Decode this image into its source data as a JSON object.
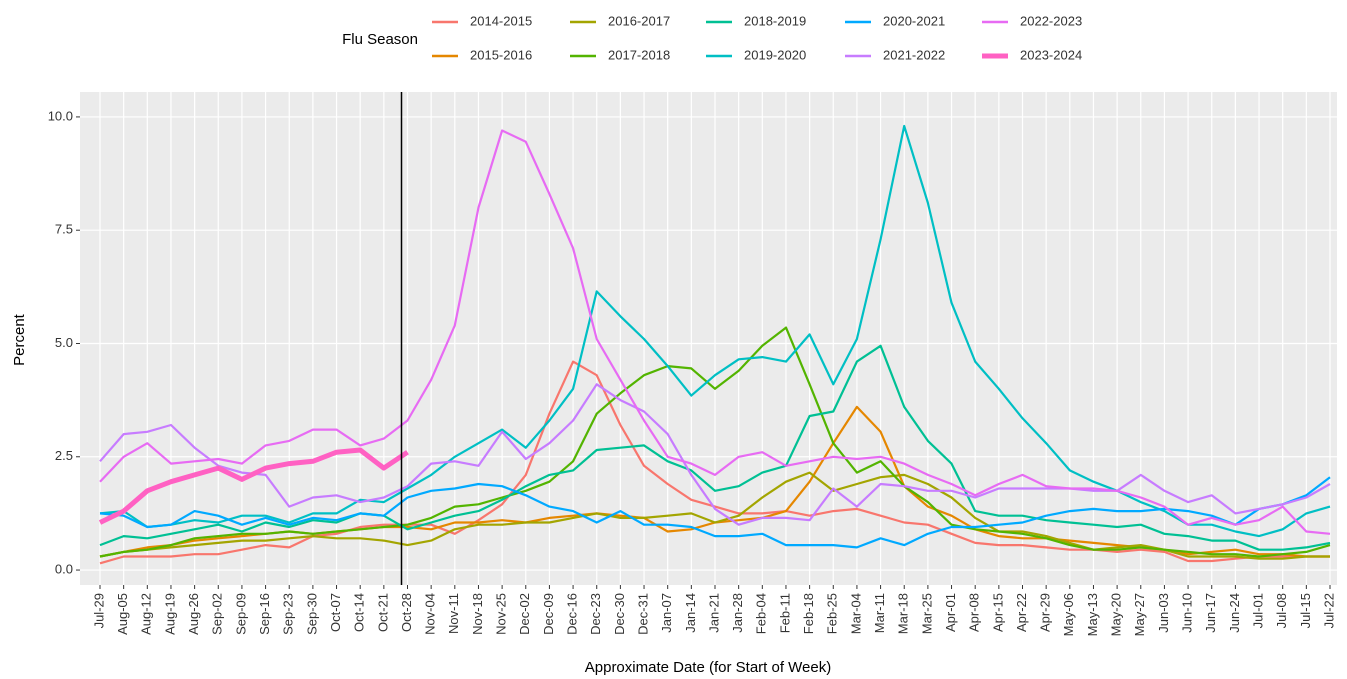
{
  "chart_data": {
    "type": "line",
    "xlabel": "Approximate Date (for Start of Week)",
    "ylabel": "Percent",
    "legend_title": "Flu Season",
    "legend_position": "top",
    "grid": true,
    "vline": "Oct-28",
    "categories": [
      "Jul-29",
      "Aug-05",
      "Aug-12",
      "Aug-19",
      "Aug-26",
      "Sep-02",
      "Sep-09",
      "Sep-16",
      "Sep-23",
      "Sep-30",
      "Oct-07",
      "Oct-14",
      "Oct-21",
      "Oct-28",
      "Nov-04",
      "Nov-11",
      "Nov-18",
      "Nov-25",
      "Dec-02",
      "Dec-09",
      "Dec-16",
      "Dec-23",
      "Dec-30",
      "Dec-31",
      "Jan-07",
      "Jan-14",
      "Jan-21",
      "Jan-28",
      "Feb-04",
      "Feb-11",
      "Feb-18",
      "Feb-25",
      "Mar-04",
      "Mar-11",
      "Mar-18",
      "Mar-25",
      "Apr-01",
      "Apr-08",
      "Apr-15",
      "Apr-22",
      "Apr-29",
      "May-06",
      "May-13",
      "May-20",
      "May-27",
      "Jun-03",
      "Jun-10",
      "Jun-17",
      "Jun-24",
      "Jul-01",
      "Jul-08",
      "Jul-15",
      "Jul-22"
    ],
    "ylim": [
      -0.33,
      10.55
    ],
    "yticks": [
      {
        "value": 0,
        "label": "0.0"
      },
      2.5,
      {
        "value": 5,
        "label": "5.0"
      },
      7.5,
      {
        "value": 10,
        "label": "10.0"
      }
    ],
    "series": [
      {
        "name": "2014-2015",
        "color": "#f8766d",
        "values": [
          0.15,
          0.3,
          0.3,
          0.3,
          0.35,
          0.35,
          0.45,
          0.55,
          0.5,
          0.75,
          0.8,
          0.95,
          1.0,
          1.0,
          1.0,
          0.8,
          1.1,
          1.45,
          2.1,
          3.45,
          4.6,
          4.3,
          3.2,
          2.3,
          1.9,
          1.55,
          1.4,
          1.25,
          1.25,
          1.3,
          1.2,
          1.3,
          1.35,
          1.2,
          1.05,
          1.0,
          0.8,
          0.6,
          0.55,
          0.55,
          0.5,
          0.45,
          0.45,
          0.4,
          0.45,
          0.4,
          0.2,
          0.2,
          0.25,
          0.3,
          0.3,
          0.3,
          0.3
        ]
      },
      {
        "name": "2015-2016",
        "color": "#e58700",
        "values": [
          0.3,
          0.4,
          0.5,
          0.55,
          0.65,
          0.7,
          0.75,
          0.8,
          0.85,
          0.8,
          0.85,
          0.9,
          0.95,
          0.95,
          0.9,
          1.05,
          1.05,
          1.1,
          1.05,
          1.15,
          1.2,
          1.25,
          1.2,
          1.15,
          0.85,
          0.9,
          1.05,
          1.1,
          1.15,
          1.3,
          1.95,
          2.8,
          3.6,
          3.05,
          1.85,
          1.4,
          1.2,
          0.9,
          0.75,
          0.7,
          0.7,
          0.65,
          0.6,
          0.55,
          0.5,
          0.45,
          0.35,
          0.4,
          0.45,
          0.35,
          0.35,
          0.3,
          0.3
        ]
      },
      {
        "name": "2016-2017",
        "color": "#a3a500",
        "values": [
          0.3,
          0.4,
          0.45,
          0.5,
          0.55,
          0.6,
          0.65,
          0.65,
          0.7,
          0.75,
          0.7,
          0.7,
          0.65,
          0.55,
          0.65,
          0.9,
          1.0,
          1.0,
          1.05,
          1.05,
          1.15,
          1.25,
          1.15,
          1.15,
          1.2,
          1.25,
          1.05,
          1.2,
          1.6,
          1.95,
          2.15,
          1.75,
          1.9,
          2.05,
          2.1,
          1.9,
          1.6,
          1.15,
          0.85,
          0.85,
          0.75,
          0.6,
          0.45,
          0.5,
          0.55,
          0.45,
          0.3,
          0.3,
          0.3,
          0.25,
          0.25,
          0.3,
          0.3
        ]
      },
      {
        "name": "2017-2018",
        "color": "#53b400",
        "values": [
          0.3,
          0.4,
          0.45,
          0.55,
          0.7,
          0.75,
          0.8,
          0.8,
          0.85,
          0.8,
          0.85,
          0.9,
          0.95,
          1.0,
          1.15,
          1.4,
          1.45,
          1.6,
          1.75,
          1.95,
          2.4,
          3.45,
          3.9,
          4.3,
          4.5,
          4.45,
          4.0,
          4.4,
          4.95,
          5.35,
          4.1,
          2.8,
          2.15,
          2.4,
          1.85,
          1.5,
          1.0,
          0.9,
          0.85,
          0.8,
          0.7,
          0.55,
          0.45,
          0.45,
          0.5,
          0.45,
          0.4,
          0.35,
          0.35,
          0.3,
          0.35,
          0.4,
          0.55
        ]
      },
      {
        "name": "2018-2019",
        "color": "#00c094",
        "values": [
          0.55,
          0.75,
          0.7,
          0.8,
          0.9,
          1.0,
          0.85,
          1.05,
          0.95,
          1.1,
          1.05,
          1.25,
          1.2,
          0.9,
          1.05,
          1.2,
          1.3,
          1.55,
          1.85,
          2.1,
          2.2,
          2.65,
          2.7,
          2.75,
          2.4,
          2.2,
          1.75,
          1.85,
          2.15,
          2.3,
          3.4,
          3.5,
          4.6,
          4.95,
          3.6,
          2.85,
          2.35,
          1.3,
          1.2,
          1.2,
          1.1,
          1.05,
          1.0,
          0.95,
          1.0,
          0.8,
          0.75,
          0.65,
          0.65,
          0.45,
          0.45,
          0.5,
          0.6
        ]
      },
      {
        "name": "2019-2020",
        "color": "#00bfc4",
        "values": [
          1.25,
          1.3,
          0.95,
          1.0,
          1.1,
          1.05,
          1.2,
          1.2,
          1.05,
          1.25,
          1.25,
          1.55,
          1.5,
          1.8,
          2.1,
          2.5,
          2.8,
          3.1,
          2.7,
          3.3,
          4.0,
          6.15,
          5.6,
          5.1,
          4.5,
          3.85,
          4.3,
          4.65,
          4.7,
          4.6,
          5.2,
          4.1,
          5.1,
          7.3,
          9.8,
          8.1,
          5.9,
          4.6,
          4.0,
          3.35,
          2.8,
          2.2,
          1.95,
          1.75,
          1.5,
          1.3,
          1.0,
          1.0,
          0.85,
          0.75,
          0.9,
          1.25,
          1.4
        ]
      },
      {
        "name": "2020-2021",
        "color": "#00a9ff",
        "values": [
          1.25,
          1.2,
          0.95,
          1.0,
          1.3,
          1.2,
          1.0,
          1.15,
          1.0,
          1.15,
          1.1,
          1.25,
          1.2,
          1.6,
          1.75,
          1.8,
          1.9,
          1.85,
          1.65,
          1.4,
          1.3,
          1.05,
          1.3,
          1.0,
          1.0,
          0.95,
          0.75,
          0.75,
          0.8,
          0.55,
          0.55,
          0.55,
          0.5,
          0.7,
          0.55,
          0.8,
          0.95,
          0.95,
          1.0,
          1.05,
          1.2,
          1.3,
          1.35,
          1.3,
          1.3,
          1.35,
          1.3,
          1.2,
          1.0,
          1.35,
          1.45,
          1.65,
          2.05
        ]
      },
      {
        "name": "2021-2022",
        "color": "#c77cff",
        "values": [
          2.4,
          3.0,
          3.05,
          3.2,
          2.7,
          2.3,
          2.15,
          2.1,
          1.4,
          1.6,
          1.65,
          1.5,
          1.6,
          1.85,
          2.35,
          2.4,
          2.3,
          3.05,
          2.45,
          2.8,
          3.3,
          4.1,
          3.75,
          3.5,
          3.0,
          2.1,
          1.35,
          1.0,
          1.15,
          1.15,
          1.1,
          1.8,
          1.4,
          1.9,
          1.85,
          1.75,
          1.75,
          1.6,
          1.8,
          1.8,
          1.8,
          1.8,
          1.75,
          1.75,
          2.1,
          1.75,
          1.5,
          1.65,
          1.25,
          1.35,
          1.45,
          1.6,
          1.9
        ]
      },
      {
        "name": "2022-2023",
        "color": "#e76bf3",
        "values": [
          1.95,
          2.5,
          2.8,
          2.35,
          2.4,
          2.45,
          2.35,
          2.75,
          2.85,
          3.1,
          3.1,
          2.75,
          2.9,
          3.3,
          4.2,
          5.4,
          8.0,
          9.7,
          9.45,
          8.3,
          7.1,
          5.1,
          4.2,
          3.3,
          2.5,
          2.35,
          2.1,
          2.5,
          2.6,
          2.3,
          2.4,
          2.5,
          2.45,
          2.5,
          2.35,
          2.1,
          1.9,
          1.65,
          1.9,
          2.1,
          1.85,
          1.8,
          1.8,
          1.75,
          1.6,
          1.4,
          1.0,
          1.15,
          1.0,
          1.1,
          1.4,
          0.85,
          0.8
        ]
      },
      {
        "name": "2023-2024",
        "color": "#ff61c3",
        "line_width": 5,
        "values": [
          1.05,
          1.3,
          1.75,
          1.95,
          2.1,
          2.25,
          2.0,
          2.25,
          2.35,
          2.4,
          2.6,
          2.65,
          2.25,
          2.6,
          null,
          null,
          null,
          null,
          null,
          null,
          null,
          null,
          null,
          null,
          null,
          null,
          null,
          null,
          null,
          null,
          null,
          null,
          null,
          null,
          null,
          null,
          null,
          null,
          null,
          null,
          null,
          null,
          null,
          null,
          null,
          null,
          null,
          null,
          null,
          null,
          null,
          null,
          null
        ]
      }
    ]
  }
}
